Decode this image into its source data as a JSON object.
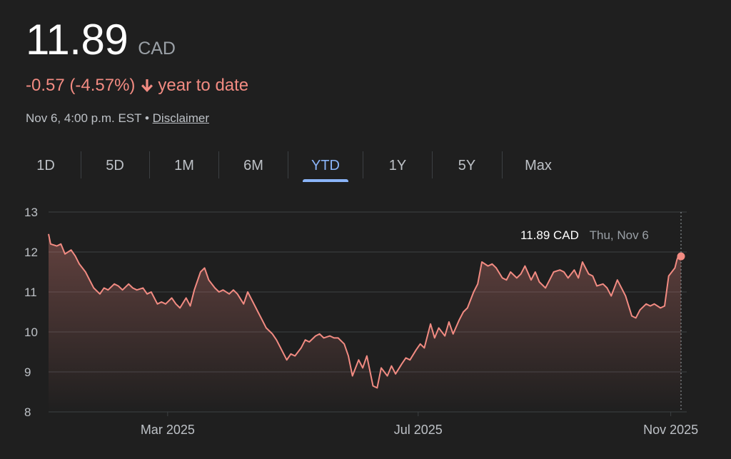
{
  "quote": {
    "price": "11.89",
    "currency": "CAD",
    "change": "-0.57 (-4.57%)",
    "period_label": "year to date",
    "timestamp": "Nov 6, 4:00 p.m. EST",
    "separator": "•",
    "disclaimer": "Disclaimer"
  },
  "tabs": [
    {
      "label": "1D",
      "active": false
    },
    {
      "label": "5D",
      "active": false
    },
    {
      "label": "1M",
      "active": false
    },
    {
      "label": "6M",
      "active": false
    },
    {
      "label": "YTD",
      "active": true
    },
    {
      "label": "1Y",
      "active": false
    },
    {
      "label": "5Y",
      "active": false
    },
    {
      "label": "Max",
      "active": false
    }
  ],
  "tooltip": {
    "value": "11.89 CAD",
    "date": "Thu, Nov 6"
  },
  "colors": {
    "line": "#f28b82",
    "accent": "#8ab4f8",
    "text": "#bdc1c6",
    "grid": "#3c4043"
  },
  "chart_data": {
    "type": "area",
    "title": "",
    "xlabel": "",
    "ylabel": "",
    "x_range": [
      "2025-01-02",
      "2025-11-06"
    ],
    "ylim": [
      8,
      13
    ],
    "y_ticks": [
      8,
      9,
      10,
      11,
      12,
      13
    ],
    "x_ticks": [
      {
        "label": "Mar 2025",
        "date": "2025-03-01"
      },
      {
        "label": "Jul 2025",
        "date": "2025-07-01"
      },
      {
        "label": "Nov 2025",
        "date": "2025-11-01"
      }
    ],
    "grid": true,
    "series": [
      {
        "values": [
          [
            "2025-01-02",
            12.45
          ],
          [
            "2025-01-03",
            12.2
          ],
          [
            "2025-01-06",
            12.15
          ],
          [
            "2025-01-08",
            12.2
          ],
          [
            "2025-01-10",
            11.95
          ],
          [
            "2025-01-13",
            12.05
          ],
          [
            "2025-01-15",
            11.9
          ],
          [
            "2025-01-17",
            11.7
          ],
          [
            "2025-01-20",
            11.5
          ],
          [
            "2025-01-22",
            11.3
          ],
          [
            "2025-01-24",
            11.1
          ],
          [
            "2025-01-27",
            10.95
          ],
          [
            "2025-01-29",
            11.1
          ],
          [
            "2025-01-31",
            11.05
          ],
          [
            "2025-02-03",
            11.2
          ],
          [
            "2025-02-05",
            11.15
          ],
          [
            "2025-02-07",
            11.05
          ],
          [
            "2025-02-10",
            11.2
          ],
          [
            "2025-02-12",
            11.1
          ],
          [
            "2025-02-14",
            11.05
          ],
          [
            "2025-02-17",
            11.1
          ],
          [
            "2025-02-19",
            10.95
          ],
          [
            "2025-02-21",
            11.0
          ],
          [
            "2025-02-24",
            10.7
          ],
          [
            "2025-02-26",
            10.75
          ],
          [
            "2025-02-28",
            10.7
          ],
          [
            "2025-03-03",
            10.85
          ],
          [
            "2025-03-05",
            10.7
          ],
          [
            "2025-03-07",
            10.6
          ],
          [
            "2025-03-10",
            10.85
          ],
          [
            "2025-03-12",
            10.65
          ],
          [
            "2025-03-14",
            11.05
          ],
          [
            "2025-03-17",
            11.5
          ],
          [
            "2025-03-19",
            11.6
          ],
          [
            "2025-03-21",
            11.3
          ],
          [
            "2025-03-24",
            11.1
          ],
          [
            "2025-03-26",
            11.0
          ],
          [
            "2025-03-28",
            11.05
          ],
          [
            "2025-03-31",
            10.95
          ],
          [
            "2025-04-02",
            11.05
          ],
          [
            "2025-04-04",
            10.95
          ],
          [
            "2025-04-07",
            10.7
          ],
          [
            "2025-04-09",
            11.0
          ],
          [
            "2025-04-11",
            10.8
          ],
          [
            "2025-04-14",
            10.5
          ],
          [
            "2025-04-16",
            10.3
          ],
          [
            "2025-04-18",
            10.1
          ],
          [
            "2025-04-21",
            9.95
          ],
          [
            "2025-04-23",
            9.8
          ],
          [
            "2025-04-25",
            9.6
          ],
          [
            "2025-04-28",
            9.3
          ],
          [
            "2025-04-30",
            9.45
          ],
          [
            "2025-05-02",
            9.4
          ],
          [
            "2025-05-05",
            9.6
          ],
          [
            "2025-05-07",
            9.8
          ],
          [
            "2025-05-09",
            9.75
          ],
          [
            "2025-05-12",
            9.9
          ],
          [
            "2025-05-14",
            9.95
          ],
          [
            "2025-05-16",
            9.85
          ],
          [
            "2025-05-19",
            9.9
          ],
          [
            "2025-05-21",
            9.85
          ],
          [
            "2025-05-23",
            9.85
          ],
          [
            "2025-05-26",
            9.7
          ],
          [
            "2025-05-28",
            9.4
          ],
          [
            "2025-05-30",
            8.9
          ],
          [
            "2025-06-02",
            9.3
          ],
          [
            "2025-06-04",
            9.1
          ],
          [
            "2025-06-06",
            9.4
          ],
          [
            "2025-06-09",
            8.65
          ],
          [
            "2025-06-11",
            8.6
          ],
          [
            "2025-06-13",
            9.1
          ],
          [
            "2025-06-16",
            8.9
          ],
          [
            "2025-06-18",
            9.15
          ],
          [
            "2025-06-20",
            8.95
          ],
          [
            "2025-06-23",
            9.2
          ],
          [
            "2025-06-25",
            9.35
          ],
          [
            "2025-06-27",
            9.3
          ],
          [
            "2025-06-30",
            9.55
          ],
          [
            "2025-07-02",
            9.7
          ],
          [
            "2025-07-04",
            9.6
          ],
          [
            "2025-07-07",
            10.2
          ],
          [
            "2025-07-09",
            9.85
          ],
          [
            "2025-07-11",
            10.1
          ],
          [
            "2025-07-14",
            9.9
          ],
          [
            "2025-07-16",
            10.25
          ],
          [
            "2025-07-18",
            9.95
          ],
          [
            "2025-07-21",
            10.3
          ],
          [
            "2025-07-23",
            10.5
          ],
          [
            "2025-07-25",
            10.6
          ],
          [
            "2025-07-28",
            11.0
          ],
          [
            "2025-07-30",
            11.2
          ],
          [
            "2025-08-01",
            11.75
          ],
          [
            "2025-08-04",
            11.65
          ],
          [
            "2025-08-06",
            11.7
          ],
          [
            "2025-08-08",
            11.6
          ],
          [
            "2025-08-11",
            11.35
          ],
          [
            "2025-08-13",
            11.3
          ],
          [
            "2025-08-15",
            11.5
          ],
          [
            "2025-08-18",
            11.35
          ],
          [
            "2025-08-20",
            11.45
          ],
          [
            "2025-08-22",
            11.65
          ],
          [
            "2025-08-25",
            11.3
          ],
          [
            "2025-08-27",
            11.5
          ],
          [
            "2025-08-29",
            11.25
          ],
          [
            "2025-09-01",
            11.1
          ],
          [
            "2025-09-03",
            11.3
          ],
          [
            "2025-09-05",
            11.5
          ],
          [
            "2025-09-08",
            11.55
          ],
          [
            "2025-09-10",
            11.5
          ],
          [
            "2025-09-12",
            11.35
          ],
          [
            "2025-09-15",
            11.55
          ],
          [
            "2025-09-17",
            11.35
          ],
          [
            "2025-09-19",
            11.75
          ],
          [
            "2025-09-22",
            11.45
          ],
          [
            "2025-09-24",
            11.4
          ],
          [
            "2025-09-26",
            11.15
          ],
          [
            "2025-09-29",
            11.2
          ],
          [
            "2025-10-01",
            11.1
          ],
          [
            "2025-10-03",
            10.9
          ],
          [
            "2025-10-06",
            11.3
          ],
          [
            "2025-10-08",
            11.1
          ],
          [
            "2025-10-10",
            10.9
          ],
          [
            "2025-10-13",
            10.4
          ],
          [
            "2025-10-15",
            10.35
          ],
          [
            "2025-10-17",
            10.55
          ],
          [
            "2025-10-20",
            10.7
          ],
          [
            "2025-10-22",
            10.65
          ],
          [
            "2025-10-24",
            10.7
          ],
          [
            "2025-10-27",
            10.6
          ],
          [
            "2025-10-29",
            10.65
          ],
          [
            "2025-10-31",
            11.4
          ],
          [
            "2025-11-03",
            11.6
          ],
          [
            "2025-11-04",
            11.8
          ],
          [
            "2025-11-05",
            11.95
          ],
          [
            "2025-11-06",
            11.89
          ]
        ]
      }
    ]
  }
}
